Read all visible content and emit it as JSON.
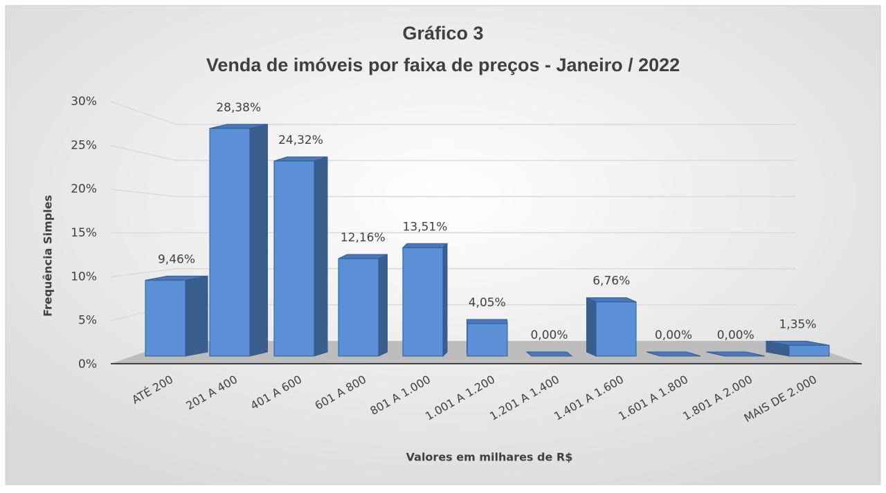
{
  "chart_data": {
    "type": "bar3d",
    "title": "Gráfico 3",
    "subtitle": "Venda de imóveis por faixa de preços -  Janeiro / 2022",
    "x_label": "Valores em milhares de R$",
    "y_label": "Frequência Simples",
    "categories": [
      "ATÉ 200",
      "201 A 400",
      "401 A 600",
      "601 A 800",
      "801 A 1.000",
      "1.001 A 1.200",
      "1.201 A 1.400",
      "1.401 A 1.600",
      "1.601 A 1.800",
      "1.801 A 2.000",
      "MAIS DE 2.000"
    ],
    "values": [
      9.46,
      28.38,
      24.32,
      12.16,
      13.51,
      4.05,
      0,
      6.76,
      0,
      0,
      1.35
    ],
    "value_labels": [
      "9,46%",
      "28,38%",
      "24,32%",
      "12,16%",
      "13,51%",
      "4,05%",
      "0,00%",
      "6,76%",
      "0,00%",
      "0,00%",
      "1,35%"
    ],
    "color": "#5b8fd6",
    "ylim": [
      0,
      30
    ],
    "yticks": [
      {
        "value": 0,
        "label": "0%"
      },
      {
        "value": 5,
        "label": "5%"
      },
      {
        "value": 10,
        "label": "10%"
      },
      {
        "value": 15,
        "label": "15%"
      },
      {
        "value": 20,
        "label": "20%"
      },
      {
        "value": 25,
        "label": "25%"
      },
      {
        "value": 30,
        "label": "30%"
      }
    ],
    "grid": true
  }
}
